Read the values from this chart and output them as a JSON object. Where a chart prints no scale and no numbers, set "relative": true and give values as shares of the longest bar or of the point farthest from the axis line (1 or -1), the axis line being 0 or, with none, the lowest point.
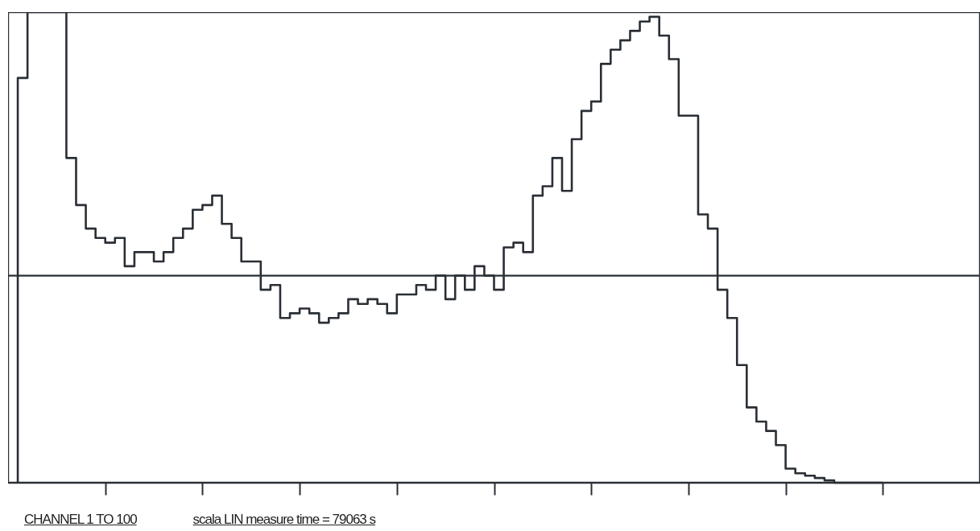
{
  "chart_data": {
    "type": "step",
    "relative": true,
    "categories": [
      null,
      null,
      null,
      null,
      null,
      null,
      null,
      null,
      null,
      null,
      null,
      null,
      null,
      null,
      null,
      null,
      null,
      null,
      null,
      null,
      null,
      null,
      null,
      null,
      null,
      null,
      null,
      null,
      null,
      null,
      null,
      null,
      null,
      null,
      null,
      null,
      null,
      null,
      null,
      null,
      null,
      null,
      null,
      null,
      null,
      null,
      null,
      null,
      null,
      null,
      null,
      null,
      null,
      null,
      null,
      null,
      null,
      null,
      null,
      null,
      null,
      null,
      null,
      null,
      null,
      null,
      null,
      null,
      null,
      null,
      null,
      null,
      null,
      null,
      null,
      null,
      null,
      null,
      null,
      null,
      null,
      null,
      null,
      null,
      null,
      null,
      null,
      null,
      null,
      null,
      null,
      null,
      null,
      null,
      null,
      null,
      null,
      null,
      null,
      null
    ],
    "series": [
      {
        "color": "#2a2f36",
        "values": [
          0,
          0.86,
          1,
          1,
          1,
          1,
          0.69,
          0.59,
          0.54,
          0.52,
          0.51,
          0.52,
          0.46,
          0.49,
          0.49,
          0.47,
          0.49,
          0.52,
          0.54,
          0.58,
          0.59,
          0.61,
          0.55,
          0.52,
          0.47,
          0.47,
          0.41,
          0.42,
          0.35,
          0.36,
          0.37,
          0.36,
          0.34,
          0.35,
          0.36,
          0.39,
          0.38,
          0.39,
          0.38,
          0.36,
          0.4,
          0.4,
          0.42,
          0.41,
          0.44,
          0.39,
          0.44,
          0.41,
          0.46,
          0.44,
          0.41,
          0.5,
          0.51,
          0.49,
          0.61,
          0.63,
          0.69,
          0.62,
          0.73,
          0.79,
          0.81,
          0.89,
          0.92,
          0.94,
          0.96,
          0.98,
          0.99,
          0.95,
          0.9,
          0.78,
          0.78,
          0.57,
          0.54,
          0.41,
          0.35,
          0.25,
          0.16,
          0.13,
          0.11,
          0.08,
          0.03,
          0.02,
          0.015,
          0.01,
          0.005,
          0,
          0,
          0,
          0,
          0,
          null,
          null,
          null,
          null,
          null,
          null,
          null,
          null,
          null,
          null
        ]
      }
    ],
    "ref_lines": [
      {
        "axis": "y",
        "value": 0.44,
        "color": "#2a2f36"
      }
    ],
    "line_style": "solid",
    "annotations": [
      "CHANNEL 1 TO 100",
      "scala LIN measure time = 79063 s"
    ]
  }
}
